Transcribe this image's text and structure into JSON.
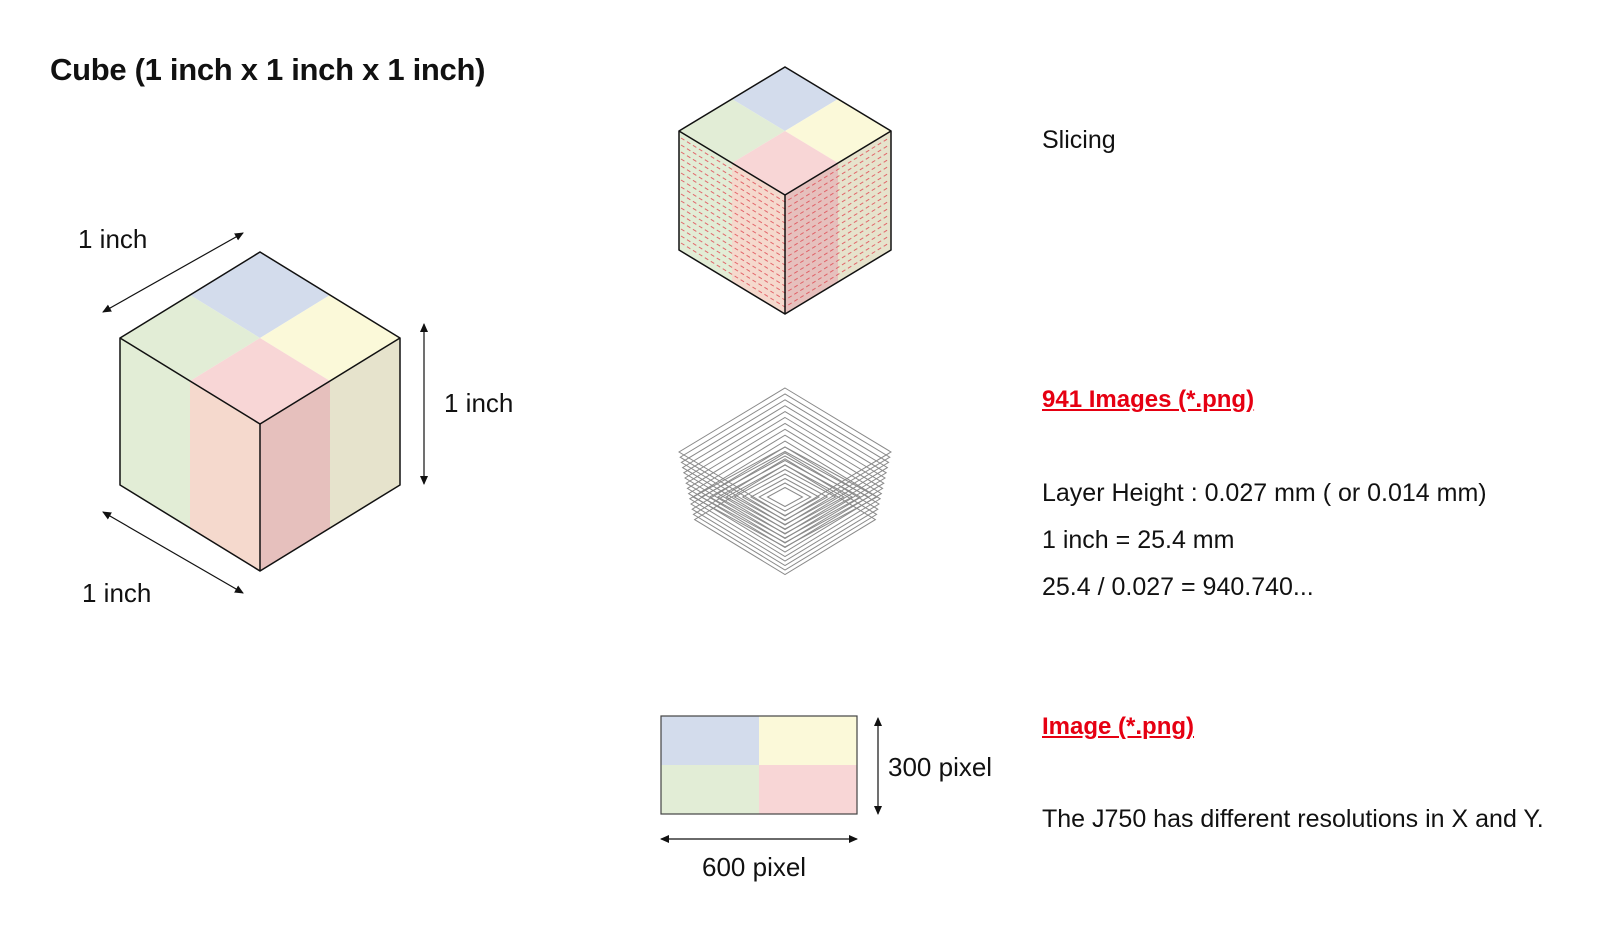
{
  "title": "Cube (1 inch x 1 inch x 1 inch)",
  "cube": {
    "width_label": "1 inch",
    "height_label": "1 inch",
    "depth_label": "1 inch"
  },
  "slicing": {
    "label": "Slicing"
  },
  "images": {
    "heading": "941 Images (*.png)",
    "lines": [
      "Layer Height : 0.027 mm ( or 0.014 mm)",
      "1 inch = 25.4 mm",
      "25.4 / 0.027 = 940.740..."
    ]
  },
  "image": {
    "heading": "Image (*.png)",
    "height_label": "300 pixel",
    "width_label": "600 pixel",
    "note": "The J750 has different resolutions in X and Y."
  },
  "colors": {
    "blue": "#d3dcec",
    "yellow": "#fbf9d9",
    "green": "#e2edd6",
    "pink": "#f8d6d6",
    "accent_red": "#e60012"
  }
}
